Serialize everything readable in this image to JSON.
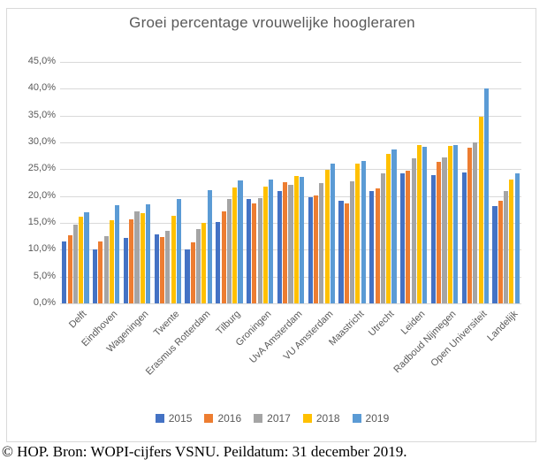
{
  "title": {
    "text": "Groei percentage vrouwelijke hoogleraren"
  },
  "footer": {
    "text": "© HOP. Bron: WOPI-cijfers VSNU. Peildatum: 31 december 2019."
  },
  "colors": {
    "series_2015": "#4472C4",
    "series_2016": "#ED7D31",
    "series_2017": "#A5A5A5",
    "series_2018": "#FFC000",
    "series_2019": "#5B9BD5",
    "gridline": "#D9D9D9",
    "frame_border": "#D9D9D9",
    "axis_text": "#595959",
    "title_text": "#595959"
  },
  "chart_data": {
    "type": "bar",
    "title": "Groei percentage vrouwelijke hoogleraren",
    "xlabel": "",
    "ylabel": "",
    "ylim": [
      0,
      45
    ],
    "grid": true,
    "legend_position": "bottom",
    "y_tick_labels": [
      "0,0%",
      "5,0%",
      "10,0%",
      "15,0%",
      "20,0%",
      "25,0%",
      "30,0%",
      "35,0%",
      "40,0%",
      "45,0%"
    ],
    "categories": [
      "Delft",
      "Eindhoven",
      "Wageningen",
      "Twente",
      "Erasmus Rotterdam",
      "Tilburg",
      "Groningen",
      "UvA Amsterdam",
      "VU Amsterdam",
      "Maastricht",
      "Utrecht",
      "Leiden",
      "Radboud Nijmegen",
      "Open Universiteit",
      "Landelijk"
    ],
    "series": [
      {
        "name": "2015",
        "color": "#4472C4",
        "values": [
          11.5,
          10.0,
          12.2,
          12.8,
          10.1,
          15.2,
          19.4,
          20.9,
          19.8,
          19.2,
          21.0,
          24.2,
          23.9,
          24.4,
          18.1
        ]
      },
      {
        "name": "2016",
        "color": "#ED7D31",
        "values": [
          12.7,
          11.6,
          15.7,
          12.3,
          11.4,
          17.2,
          18.7,
          22.6,
          20.1,
          18.7,
          21.5,
          24.7,
          26.3,
          29.0,
          19.1
        ]
      },
      {
        "name": "2017",
        "color": "#A5A5A5",
        "values": [
          14.7,
          12.6,
          17.1,
          13.6,
          13.8,
          19.4,
          19.7,
          22.1,
          22.5,
          22.8,
          24.3,
          27.1,
          27.2,
          30.0,
          21.0
        ]
      },
      {
        "name": "2018",
        "color": "#FFC000",
        "values": [
          16.1,
          15.5,
          16.8,
          16.4,
          15.0,
          21.6,
          21.7,
          23.7,
          24.9,
          26.0,
          27.9,
          29.5,
          29.3,
          34.8,
          23.0
        ]
      },
      {
        "name": "2019",
        "color": "#5B9BD5",
        "values": [
          16.9,
          18.3,
          18.5,
          19.5,
          21.1,
          22.9,
          23.1,
          23.6,
          26.1,
          26.6,
          28.7,
          29.1,
          29.5,
          40.0,
          24.3
        ]
      }
    ]
  }
}
